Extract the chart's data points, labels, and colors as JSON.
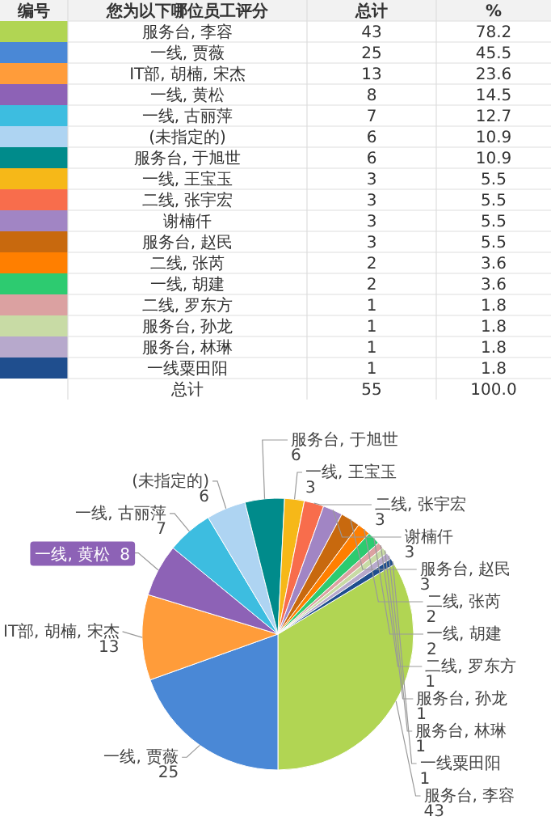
{
  "chart_data": [
    {
      "type": "other",
      "categories": [
        "服务台, 李容",
        "一线, 贾薇",
        "IT部, 胡楠, 宋杰",
        "一线, 黄松",
        "一线, 古丽萍",
        "(未指定的)",
        "服务台, 于旭世",
        "一线, 王宝玉",
        "二线, 张宇宏",
        "谢楠仟",
        "服务台, 赵民",
        "二线, 张芮",
        "一线, 胡建",
        "二线, 罗东方",
        "服务台, 孙龙",
        "服务台, 林琳",
        "一线粟田阳"
      ],
      "colors": [
        "#b1d553",
        "#4a88d6",
        "#ff9c3a",
        "#8d62b6",
        "#3dbde0",
        "#aed4f2",
        "#008b8b",
        "#f6b818",
        "#f86d4c",
        "#a185c4",
        "#c8690e",
        "#ff7f00",
        "#2dcb70",
        "#dba1a1",
        "#c8dba5",
        "#b7a9cc",
        "#1f4e8e"
      ],
      "series": [
        {
          "name": "总计",
          "values": [
            43,
            25,
            13,
            8,
            7,
            6,
            6,
            3,
            3,
            3,
            3,
            2,
            2,
            1,
            1,
            1,
            1
          ]
        },
        {
          "name": "%",
          "values": [
            78.2,
            45.5,
            23.6,
            14.5,
            12.7,
            10.9,
            10.9,
            5.5,
            5.5,
            5.5,
            5.5,
            3.6,
            3.6,
            1.8,
            1.8,
            1.8,
            1.8
          ]
        }
      ],
      "data_labels": true,
      "annotations": [
        "编号",
        "您为以下哪位员工评分",
        "总计"
      ],
      "totals": [
        "55",
        "100.0"
      ]
    },
    {
      "type": "pie",
      "categories": [
        "服务台, 李容",
        "一线, 贾薇",
        "IT部, 胡楠, 宋杰",
        "一线, 黄松",
        "一线, 古丽萍",
        "(未指定的)",
        "服务台, 于旭世",
        "一线, 王宝玉",
        "二线, 张宇宏",
        "谢楠仟",
        "服务台, 赵民",
        "二线, 张芮",
        "一线, 胡建",
        "二线, 罗东方",
        "服务台, 孙龙",
        "服务台, 林琳",
        "一线粟田阳"
      ],
      "values": [
        43,
        25,
        13,
        8,
        7,
        6,
        6,
        3,
        3,
        3,
        3,
        2,
        2,
        1,
        1,
        1,
        1
      ],
      "colors": [
        "#b1d553",
        "#4a88d6",
        "#ff9c3a",
        "#8d62b6",
        "#3dbde0",
        "#aed4f2",
        "#008b8b",
        "#f6b818",
        "#f86d4c",
        "#a185c4",
        "#c8690e",
        "#ff7f00",
        "#2dcb70",
        "#dba1a1",
        "#c8dba5",
        "#b7a9cc",
        "#1f4e8e"
      ],
      "data_labels": true
    }
  ]
}
